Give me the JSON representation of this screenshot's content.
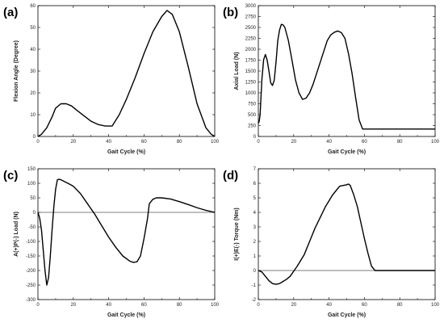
{
  "chart_data": [
    {
      "type": "line",
      "panel_label": "(a)",
      "xlabel": "Gait Cycle (%)",
      "ylabel": "Flexion Angle (Degree)",
      "xlim": [
        0,
        100
      ],
      "ylim": [
        0,
        60
      ],
      "xticks": [
        0,
        20,
        40,
        60,
        80,
        100
      ],
      "yticks": [
        0,
        10,
        20,
        30,
        40,
        50,
        60
      ],
      "grid": false,
      "zero_line": false,
      "series": [
        {
          "x": [
            0,
            2,
            5,
            8,
            10,
            13,
            16,
            19,
            22,
            26,
            30,
            34,
            38,
            42,
            46,
            50,
            55,
            60,
            65,
            70,
            73,
            76,
            80,
            85,
            90,
            95,
            98,
            100
          ],
          "values": [
            0,
            1,
            4,
            9,
            13,
            15,
            15,
            14,
            12,
            9.5,
            7,
            5.5,
            4.8,
            4.8,
            10,
            17,
            27,
            38,
            48,
            55,
            57.8,
            56,
            48,
            32,
            15,
            4,
            1,
            0
          ]
        }
      ]
    },
    {
      "type": "line",
      "panel_label": "(b)",
      "xlabel": "Gait Cycle (%)",
      "ylabel": "Axial Load (N)",
      "xlim": [
        0,
        100
      ],
      "ylim": [
        0,
        3000
      ],
      "xticks": [
        0,
        20,
        40,
        60,
        80,
        100
      ],
      "yticks": [
        0,
        250,
        500,
        750,
        1000,
        1250,
        1500,
        1750,
        2000,
        2250,
        2500,
        2750,
        3000
      ],
      "grid": false,
      "zero_line": false,
      "series": [
        {
          "x": [
            0,
            0.5,
            1,
            2,
            3,
            4,
            5,
            6,
            7,
            8,
            9,
            10,
            11,
            12,
            13,
            14,
            15,
            17,
            19,
            21,
            23,
            25,
            27,
            29,
            31,
            33,
            35,
            37,
            39,
            41,
            43,
            45,
            47,
            49,
            51,
            53,
            55,
            57,
            59,
            60,
            70,
            80,
            90,
            100
          ],
          "values": [
            300,
            350,
            500,
            1300,
            1760,
            1880,
            1750,
            1500,
            1230,
            1170,
            1290,
            1700,
            2200,
            2440,
            2570,
            2560,
            2500,
            2200,
            1760,
            1300,
            1000,
            850,
            880,
            1000,
            1200,
            1450,
            1700,
            1950,
            2200,
            2330,
            2390,
            2420,
            2380,
            2250,
            1900,
            1450,
            900,
            380,
            170,
            170,
            170,
            170,
            170,
            170
          ]
        }
      ]
    },
    {
      "type": "line",
      "panel_label": "(c)",
      "xlabel": "Gait Cycle (%)",
      "ylabel": "A(+)P(-) Load (N)",
      "xlim": [
        0,
        100
      ],
      "ylim": [
        -300,
        150
      ],
      "xticks": [
        0,
        20,
        40,
        60,
        80,
        100
      ],
      "yticks": [
        -300,
        -250,
        -200,
        -150,
        -100,
        -50,
        0,
        50,
        100,
        150
      ],
      "grid": false,
      "zero_line": true,
      "series": [
        {
          "x": [
            0,
            1,
            2,
            3,
            4,
            5,
            6,
            7,
            8,
            9,
            10,
            11,
            12,
            13,
            15,
            17,
            20,
            24,
            28,
            32,
            36,
            40,
            44,
            48,
            52,
            54,
            56,
            58,
            60,
            62,
            63,
            65,
            67,
            70,
            75,
            80,
            85,
            90,
            95,
            100
          ],
          "values": [
            0,
            -20,
            -60,
            -130,
            -200,
            -250,
            -225,
            -150,
            -60,
            20,
            80,
            112,
            114,
            112,
            106,
            100,
            90,
            65,
            30,
            -5,
            -45,
            -85,
            -120,
            -150,
            -168,
            -172,
            -170,
            -150,
            -90,
            -20,
            30,
            45,
            50,
            50,
            46,
            37,
            27,
            16,
            7,
            0
          ]
        }
      ]
    },
    {
      "type": "line",
      "panel_label": "(d)",
      "xlabel": "Gait Cycle (%)",
      "ylabel": "I(+)E(-) Torque (Nm)",
      "xlim": [
        0,
        100
      ],
      "ylim": [
        -2,
        7
      ],
      "xticks": [
        0,
        20,
        40,
        60,
        80,
        100
      ],
      "yticks": [
        -2,
        -1,
        0,
        1,
        2,
        3,
        4,
        5,
        6,
        7
      ],
      "grid": false,
      "zero_line": true,
      "series": [
        {
          "x": [
            0,
            2,
            4,
            6,
            8,
            10,
            12,
            14,
            16,
            18,
            20,
            22,
            24,
            26,
            28,
            30,
            32,
            34,
            36,
            38,
            40,
            42,
            44,
            46,
            48,
            50,
            51,
            52,
            54,
            56,
            58,
            60,
            62,
            64,
            66,
            70,
            80,
            90,
            100
          ],
          "values": [
            0,
            -0.1,
            -0.4,
            -0.7,
            -0.9,
            -0.95,
            -0.9,
            -0.75,
            -0.6,
            -0.4,
            -0.05,
            0.3,
            0.7,
            1.1,
            1.7,
            2.3,
            2.9,
            3.4,
            3.9,
            4.4,
            4.8,
            5.2,
            5.5,
            5.8,
            5.85,
            5.9,
            5.95,
            5.85,
            5.2,
            4.4,
            3.3,
            2.2,
            1.2,
            0.3,
            0,
            0,
            0,
            0,
            0
          ]
        }
      ]
    }
  ]
}
